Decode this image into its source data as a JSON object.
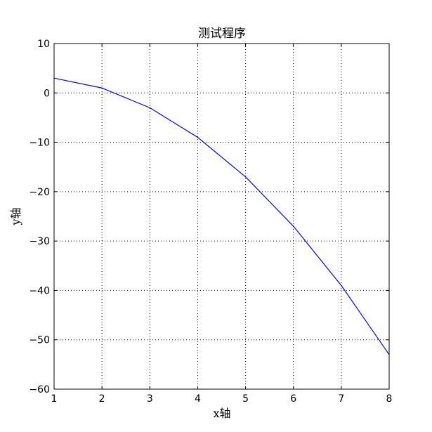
{
  "chart_data": {
    "type": "line",
    "title": "测试程序",
    "xlabel": "x轴",
    "ylabel": "y轴",
    "xlim": [
      1,
      8
    ],
    "ylim": [
      -60,
      10
    ],
    "xticks": [
      1,
      2,
      3,
      4,
      5,
      6,
      7,
      8
    ],
    "yticks": [
      10,
      0,
      -10,
      -20,
      -30,
      -40,
      -50,
      -60
    ],
    "xtick_labels": [
      "1",
      "2",
      "3",
      "4",
      "5",
      "6",
      "7",
      "8"
    ],
    "ytick_labels": [
      "10",
      "0",
      "−10",
      "−20",
      "−30",
      "−40",
      "−50",
      "−60"
    ],
    "grid": true,
    "series": [
      {
        "color": "#0000ff",
        "x": [
          1,
          2,
          3,
          4,
          5,
          6,
          7,
          8
        ],
        "y": [
          3,
          1,
          -3,
          -9,
          -17,
          -27,
          -39,
          -53
        ]
      }
    ]
  }
}
